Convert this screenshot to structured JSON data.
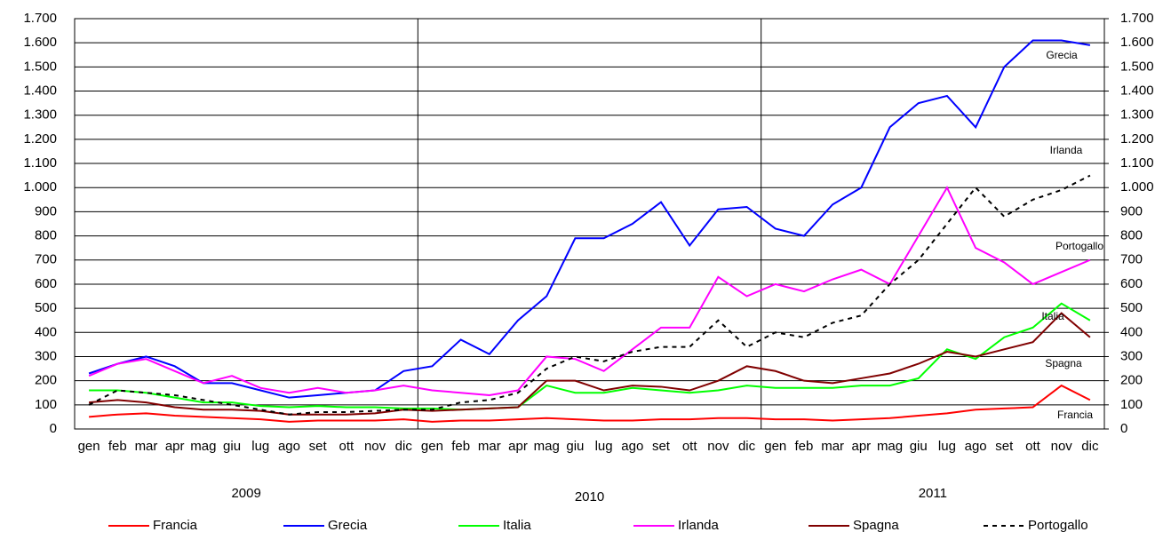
{
  "chart_data": {
    "type": "line",
    "categories": [
      "gen",
      "feb",
      "mar",
      "apr",
      "mag",
      "giu",
      "lug",
      "ago",
      "set",
      "ott",
      "nov",
      "dic",
      "gen",
      "feb",
      "mar",
      "apr",
      "mag",
      "giu",
      "lug",
      "ago",
      "set",
      "ott",
      "nov",
      "dic",
      "gen",
      "feb",
      "mar",
      "apr",
      "mag",
      "giu",
      "lug",
      "ago",
      "set",
      "ott",
      "nov",
      "dic"
    ],
    "years": [
      "2009",
      "2010",
      "2011"
    ],
    "series": [
      {
        "name": "Francia",
        "color": "#ff0000",
        "values": [
          50,
          60,
          65,
          55,
          50,
          45,
          40,
          30,
          35,
          35,
          35,
          40,
          30,
          35,
          35,
          40,
          45,
          40,
          35,
          35,
          40,
          40,
          45,
          45,
          40,
          40,
          35,
          40,
          45,
          55,
          65,
          80,
          85,
          90,
          180,
          120
        ]
      },
      {
        "name": "Grecia",
        "color": "#0000ff",
        "values": [
          230,
          270,
          300,
          260,
          190,
          190,
          160,
          130,
          140,
          150,
          160,
          240,
          260,
          370,
          310,
          450,
          550,
          790,
          790,
          850,
          940,
          760,
          910,
          920,
          830,
          800,
          930,
          1000,
          1250,
          1350,
          1380,
          1250,
          1500,
          1610,
          1610,
          1590
        ]
      },
      {
        "name": "Italia",
        "color": "#00ff00",
        "values": [
          160,
          160,
          150,
          130,
          110,
          110,
          95,
          90,
          95,
          90,
          90,
          85,
          85,
          80,
          85,
          90,
          180,
          150,
          150,
          170,
          160,
          150,
          160,
          180,
          170,
          170,
          170,
          180,
          180,
          210,
          330,
          290,
          380,
          420,
          520,
          450
        ]
      },
      {
        "name": "Irlanda",
        "color": "#ff00ff",
        "values": [
          220,
          270,
          290,
          240,
          190,
          220,
          170,
          150,
          170,
          150,
          160,
          180,
          160,
          150,
          140,
          160,
          300,
          290,
          240,
          330,
          420,
          420,
          630,
          550,
          600,
          570,
          620,
          660,
          600,
          800,
          1000,
          750,
          690,
          600,
          650,
          700
        ]
      },
      {
        "name": "Spagna",
        "color": "#800000",
        "values": [
          110,
          120,
          110,
          90,
          80,
          80,
          75,
          60,
          60,
          60,
          65,
          80,
          75,
          80,
          85,
          90,
          200,
          200,
          160,
          180,
          175,
          160,
          200,
          260,
          240,
          200,
          190,
          210,
          230,
          270,
          320,
          300,
          330,
          360,
          480,
          380
        ]
      },
      {
        "name": "Portogallo",
        "color": "#000000",
        "dash": true,
        "values": [
          100,
          160,
          150,
          140,
          120,
          100,
          80,
          60,
          70,
          70,
          75,
          80,
          80,
          110,
          120,
          150,
          250,
          300,
          280,
          320,
          340,
          340,
          450,
          340,
          400,
          380,
          440,
          470,
          600,
          700,
          850,
          1000,
          880,
          950,
          990,
          1050
        ]
      }
    ],
    "annotations": [
      "Grecia",
      "Irlanda",
      "Portogallo",
      "Italia",
      "Spagna",
      "Francia"
    ],
    "ylim": [
      0,
      1700
    ],
    "yticks": [
      0,
      100,
      200,
      300,
      400,
      500,
      600,
      700,
      800,
      900,
      {
        "value": 1000,
        "label": "1.000"
      },
      {
        "value": 1100,
        "label": "1.100"
      },
      {
        "value": 1200,
        "label": "1.200"
      },
      {
        "value": 1300,
        "label": "1.300"
      },
      {
        "value": 1400,
        "label": "1.400"
      },
      {
        "value": 1500,
        "label": "1.500"
      },
      {
        "value": 1600,
        "label": "1.600"
      },
      {
        "value": 1700,
        "label": "1.700"
      }
    ],
    "y2lim": [
      0,
      1700
    ],
    "y2ticks": [
      0,
      100,
      200,
      300,
      400,
      500,
      600,
      700,
      800,
      900,
      {
        "value": 1000,
        "label": "1.000"
      },
      {
        "value": 1100,
        "label": "1.100"
      },
      {
        "value": 1200,
        "label": "1.200"
      },
      {
        "value": 1300,
        "label": "1.300"
      },
      {
        "value": 1400,
        "label": "1.400"
      },
      {
        "value": 1500,
        "label": "1.500"
      },
      {
        "value": 1600,
        "label": "1.600"
      },
      {
        "value": 1700,
        "label": "1.700"
      }
    ],
    "grid": true
  }
}
